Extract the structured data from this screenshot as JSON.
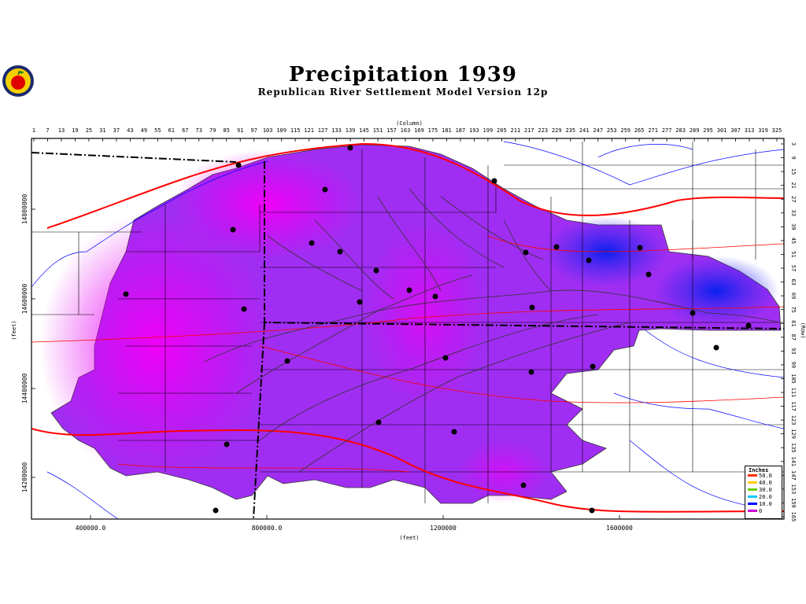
{
  "title": "Precipitation 1939",
  "subtitle": "Republican River Settlement Model Version 12p",
  "axes": {
    "column_label": "(Column)",
    "row_label": "(Row)",
    "x_label": "(feet)",
    "y_label": "(feet)",
    "columns": [
      "1",
      "7",
      "13",
      "19",
      "25",
      "31",
      "37",
      "43",
      "49",
      "55",
      "61",
      "67",
      "73",
      "79",
      "85",
      "91",
      "97",
      "103",
      "109",
      "115",
      "121",
      "127",
      "133",
      "139",
      "145",
      "151",
      "157",
      "163",
      "169",
      "175",
      "181",
      "187",
      "193",
      "199",
      "205",
      "211",
      "217",
      "223",
      "229",
      "235",
      "241",
      "247",
      "253",
      "259",
      "265",
      "271",
      "277",
      "283",
      "289",
      "295",
      "301",
      "307",
      "313",
      "319",
      "325"
    ],
    "rows": [
      "3",
      "9",
      "15",
      "21",
      "27",
      "33",
      "39",
      "45",
      "51",
      "57",
      "63",
      "69",
      "75",
      "81",
      "87",
      "93",
      "99",
      "105",
      "111",
      "117",
      "123",
      "129",
      "135",
      "141",
      "147",
      "153",
      "159",
      "165"
    ],
    "x_ticks": [
      "400000.0",
      "800000.0",
      "1200000",
      "1600000"
    ],
    "y_ticks": [
      "14800000",
      "14600000",
      "14400000",
      "14200000"
    ]
  },
  "legend": {
    "title": "Inches",
    "items": [
      {
        "label": "50.0",
        "color": "#ff3300"
      },
      {
        "label": "40.0",
        "color": "#ffcc00"
      },
      {
        "label": "30.0",
        "color": "#66cc00"
      },
      {
        "label": "20.0",
        "color": "#00ccff"
      },
      {
        "label": "10.0",
        "color": "#0000ff"
      },
      {
        "label": "0",
        "color": "#cc00cc"
      }
    ]
  },
  "colors": {
    "precip_low": "#d800f0",
    "precip_mid": "#9a2ff0",
    "precip_high": "#0a2ff0",
    "roads": "#ff0000",
    "rivers": "#0000ff",
    "counties": "#000000"
  }
}
